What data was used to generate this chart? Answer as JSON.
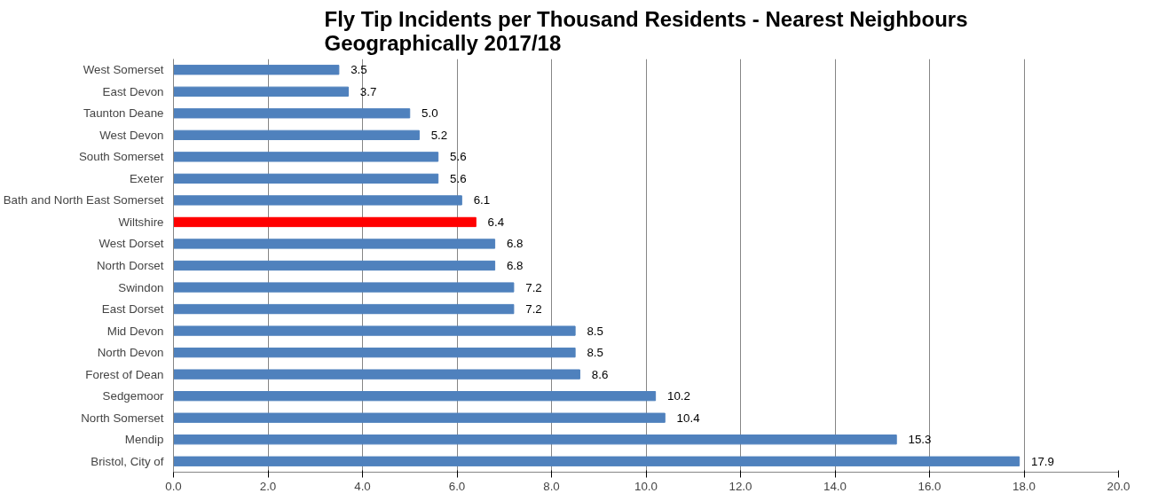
{
  "chart_data": {
    "type": "bar",
    "orientation": "horizontal",
    "title": "Fly Tip Incidents per Thousand Residents - Nearest Neighbours Geographically 2017/18",
    "categories": [
      "West Somerset",
      "East Devon",
      "Taunton Deane",
      "West Devon",
      "South Somerset",
      "Exeter",
      "Bath and North East Somerset",
      "Wiltshire",
      "West Dorset",
      "North Dorset",
      "Swindon",
      "East Dorset",
      "Mid Devon",
      "North Devon",
      "Forest of Dean",
      "Sedgemoor",
      "North Somerset",
      "Mendip",
      "Bristol, City of"
    ],
    "values": [
      3.5,
      3.7,
      5.0,
      5.2,
      5.6,
      5.6,
      6.1,
      6.4,
      6.8,
      6.8,
      7.2,
      7.2,
      8.5,
      8.5,
      8.6,
      10.2,
      10.4,
      15.3,
      17.9
    ],
    "colors": [
      "#4f81bd",
      "#4f81bd",
      "#4f81bd",
      "#4f81bd",
      "#4f81bd",
      "#4f81bd",
      "#4f81bd",
      "#ff0000",
      "#4f81bd",
      "#4f81bd",
      "#4f81bd",
      "#4f81bd",
      "#4f81bd",
      "#4f81bd",
      "#4f81bd",
      "#4f81bd",
      "#4f81bd",
      "#4f81bd",
      "#4f81bd"
    ],
    "xlim": [
      0,
      20
    ],
    "xticks": [
      {
        "value": 0,
        "label": "0.0"
      },
      {
        "value": 2,
        "label": "2.0"
      },
      {
        "value": 4,
        "label": "4.0"
      },
      {
        "value": 6,
        "label": "6.0"
      },
      {
        "value": 8,
        "label": "8.0"
      },
      {
        "value": 10,
        "label": "10.0"
      },
      {
        "value": 12,
        "label": "12.0"
      },
      {
        "value": 14,
        "label": "14.0"
      },
      {
        "value": 16,
        "label": "16.0"
      },
      {
        "value": 18,
        "label": "18.0"
      },
      {
        "value": 20,
        "label": "20.0"
      }
    ],
    "grid": "x",
    "value_labels": [
      "3.5",
      "3.7",
      "5.0",
      "5.2",
      "5.6",
      "5.6",
      "6.1",
      "6.4",
      "6.8",
      "6.8",
      "7.2",
      "7.2",
      "8.5",
      "8.5",
      "8.6",
      "10.2",
      "10.4",
      "15.3",
      "17.9"
    ]
  }
}
